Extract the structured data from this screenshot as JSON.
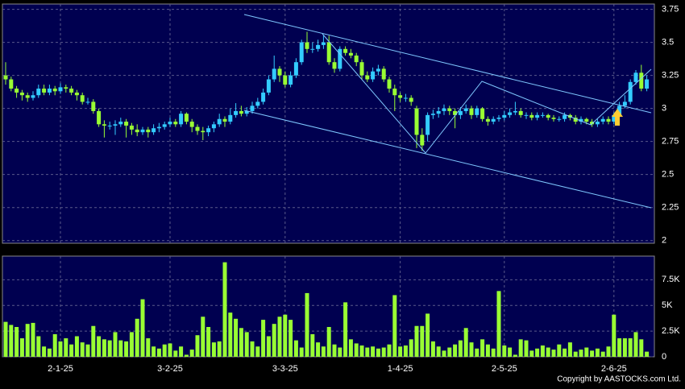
{
  "chart_data": [
    {
      "type": "candlestick",
      "categories": [
        null,
        null,
        null,
        null,
        null,
        null,
        null,
        null,
        null,
        null,
        "2-1-25",
        null,
        null,
        null,
        null,
        null,
        null,
        null,
        null,
        null,
        null,
        null,
        null,
        null,
        null,
        null,
        null,
        null,
        null,
        null,
        "3-2-25",
        null,
        null,
        null,
        null,
        null,
        null,
        null,
        null,
        null,
        null,
        null,
        null,
        null,
        null,
        null,
        null,
        null,
        null,
        null,
        null,
        "3-3-25",
        null,
        null,
        null,
        null,
        null,
        null,
        null,
        null,
        null,
        null,
        null,
        null,
        null,
        null,
        null,
        null,
        null,
        null,
        null,
        null,
        "1-4-25",
        null,
        null,
        null,
        null,
        null,
        null,
        null,
        null,
        null,
        null,
        null,
        null,
        null,
        null,
        null,
        null,
        null,
        null,
        "2-5-25",
        null,
        null,
        null,
        null,
        null,
        null,
        null,
        null,
        null,
        null,
        null,
        null,
        null,
        null,
        null,
        null,
        null,
        null,
        null,
        "2-6-25",
        null,
        null,
        null,
        null,
        null,
        null
      ],
      "open": [
        3.25,
        3.22,
        3.15,
        3.12,
        3.1,
        3.08,
        3.1,
        3.15,
        3.12,
        3.15,
        3.13,
        3.16,
        3.15,
        3.12,
        3.1,
        3.05,
        3.05,
        2.98,
        2.88,
        2.87,
        2.87,
        2.88,
        2.9,
        2.87,
        2.84,
        2.82,
        2.84,
        2.82,
        2.85,
        2.86,
        2.88,
        2.9,
        2.88,
        2.96,
        2.9,
        2.86,
        2.83,
        2.82,
        2.85,
        2.88,
        2.92,
        2.9,
        2.95,
        2.98,
        2.96,
        2.98,
        3.02,
        3.05,
        3.12,
        3.22,
        3.3,
        3.25,
        3.18,
        3.25,
        3.35,
        3.5,
        3.45,
        3.45,
        3.48,
        3.5,
        3.35,
        3.3,
        3.45,
        3.42,
        3.4,
        3.35,
        3.25,
        3.22,
        3.28,
        3.3,
        3.22,
        3.15,
        3.1,
        3.08,
        3.08,
        3.0,
        2.8,
        2.8,
        2.95,
        2.96,
        2.98,
        3.0,
        2.98,
        2.95,
        2.98,
        3.0,
        2.95,
        3.0,
        2.92,
        2.9,
        2.92,
        2.93,
        2.95,
        2.97,
        2.98,
        2.95,
        2.95,
        2.93,
        2.95,
        2.95,
        2.93,
        2.92,
        2.92,
        2.95,
        2.93,
        2.9,
        2.92,
        2.9,
        2.88,
        2.9,
        2.92,
        2.9,
        2.95,
        3.02,
        3.05,
        3.2,
        3.27,
        3.15
      ],
      "high": [
        3.35,
        3.24,
        3.17,
        3.14,
        3.12,
        3.13,
        3.18,
        3.18,
        3.18,
        3.17,
        3.19,
        3.18,
        3.17,
        3.14,
        3.12,
        3.08,
        3.07,
        3.0,
        2.91,
        2.9,
        2.91,
        2.93,
        2.92,
        2.89,
        2.88,
        2.86,
        2.86,
        2.88,
        2.89,
        2.9,
        2.93,
        2.92,
        2.98,
        2.97,
        2.92,
        2.88,
        2.86,
        2.87,
        2.9,
        2.96,
        2.94,
        3.0,
        3.04,
        3.02,
        3.01,
        3.05,
        3.08,
        3.15,
        3.25,
        3.4,
        3.32,
        3.28,
        3.28,
        3.38,
        3.52,
        3.58,
        3.5,
        3.52,
        3.55,
        3.55,
        3.38,
        3.47,
        3.47,
        3.45,
        3.42,
        3.37,
        3.28,
        3.31,
        3.33,
        3.32,
        3.24,
        3.18,
        3.12,
        3.11,
        3.1,
        3.02,
        2.85,
        2.97,
        2.99,
        3.01,
        3.03,
        3.02,
        3.0,
        3.01,
        3.03,
        3.02,
        3.02,
        3.01,
        2.94,
        2.94,
        2.95,
        2.98,
        3.0,
        3.05,
        3.0,
        2.97,
        2.97,
        2.97,
        2.97,
        2.96,
        2.95,
        2.94,
        2.97,
        2.96,
        2.95,
        2.94,
        2.93,
        2.92,
        2.92,
        2.94,
        2.94,
        2.97,
        3.05,
        3.1,
        3.22,
        3.29,
        3.33,
        3.25
      ],
      "low": [
        3.18,
        3.13,
        3.08,
        3.06,
        3.05,
        3.06,
        3.08,
        3.1,
        3.1,
        3.1,
        3.11,
        3.12,
        3.1,
        3.06,
        3.03,
        3.03,
        2.96,
        2.86,
        2.78,
        2.84,
        2.8,
        2.86,
        2.78,
        2.8,
        2.79,
        2.8,
        2.78,
        2.8,
        2.82,
        2.84,
        2.86,
        2.86,
        2.86,
        2.88,
        2.82,
        2.8,
        2.76,
        2.79,
        2.82,
        2.86,
        2.86,
        2.88,
        2.93,
        2.94,
        2.94,
        2.96,
        3.0,
        3.03,
        3.1,
        3.2,
        3.2,
        3.16,
        3.16,
        3.23,
        3.33,
        3.42,
        3.42,
        3.43,
        3.45,
        3.33,
        3.27,
        3.28,
        3.4,
        3.38,
        3.32,
        3.22,
        3.2,
        3.2,
        3.25,
        3.2,
        3.12,
        2.98,
        3.05,
        3.05,
        3.02,
        2.7,
        2.68,
        2.75,
        2.92,
        2.93,
        2.95,
        2.95,
        2.85,
        2.92,
        2.96,
        2.92,
        2.93,
        2.9,
        2.87,
        2.88,
        2.9,
        2.91,
        2.93,
        2.95,
        2.93,
        2.92,
        2.91,
        2.91,
        2.93,
        2.91,
        2.9,
        2.9,
        2.9,
        2.91,
        2.88,
        2.88,
        2.88,
        2.86,
        2.86,
        2.88,
        2.88,
        2.88,
        2.93,
        3.0,
        3.03,
        3.18,
        3.13,
        3.13
      ],
      "close": [
        3.22,
        3.15,
        3.12,
        3.1,
        3.08,
        3.1,
        3.15,
        3.12,
        3.15,
        3.13,
        3.16,
        3.15,
        3.12,
        3.1,
        3.05,
        3.05,
        2.98,
        2.88,
        2.87,
        2.87,
        2.88,
        2.9,
        2.87,
        2.84,
        2.82,
        2.84,
        2.82,
        2.85,
        2.86,
        2.88,
        2.9,
        2.88,
        2.96,
        2.9,
        2.86,
        2.83,
        2.82,
        2.85,
        2.88,
        2.92,
        2.9,
        2.95,
        2.98,
        2.96,
        2.98,
        3.02,
        3.05,
        3.12,
        3.22,
        3.3,
        3.25,
        3.18,
        3.25,
        3.35,
        3.5,
        3.45,
        3.45,
        3.48,
        3.5,
        3.35,
        3.3,
        3.45,
        3.42,
        3.4,
        3.35,
        3.25,
        3.22,
        3.28,
        3.3,
        3.22,
        3.15,
        3.1,
        3.08,
        3.08,
        3.05,
        2.8,
        2.72,
        2.95,
        2.96,
        2.98,
        3.0,
        2.98,
        2.95,
        2.98,
        3.0,
        2.95,
        3.0,
        2.92,
        2.9,
        2.92,
        2.93,
        2.95,
        2.97,
        2.98,
        2.95,
        2.95,
        2.93,
        2.95,
        2.95,
        2.93,
        2.92,
        2.92,
        2.95,
        2.93,
        2.9,
        2.92,
        2.9,
        2.88,
        2.9,
        2.92,
        2.9,
        2.95,
        3.02,
        3.05,
        3.2,
        3.27,
        3.15,
        3.22
      ],
      "up_color": "#33ccff",
      "down_color": "#99ff33",
      "ylim": [
        1.98,
        3.79
      ],
      "yticks": [
        2,
        2.25,
        2.5,
        2.75,
        3,
        3.25,
        3.5,
        3.75
      ],
      "grid": true
    },
    {
      "type": "bar",
      "values": [
        3400,
        3100,
        2900,
        1800,
        3200,
        3300,
        2000,
        1000,
        800,
        2200,
        1500,
        1800,
        1200,
        2000,
        1400,
        1200,
        3000,
        2000,
        1700,
        1600,
        2400,
        1600,
        1500,
        2400,
        3700,
        5600,
        1800,
        1000,
        800,
        1200,
        1300,
        600,
        1000,
        200,
        700,
        2100,
        3900,
        2900,
        1400,
        1500,
        9200,
        4300,
        3700,
        2800,
        2400,
        1500,
        1000,
        3600,
        2000,
        3200,
        3900,
        4100,
        3600,
        1600,
        900,
        6200,
        2200,
        1400,
        1000,
        2900,
        1200,
        900,
        5300,
        1700,
        1300,
        1100,
        900,
        1000,
        800,
        900,
        1200,
        6000,
        1000,
        1100,
        1700,
        3000,
        3000,
        4200,
        1500,
        1000,
        600,
        900,
        1200,
        1600,
        2800,
        1400,
        800,
        1700,
        1200,
        800,
        6400,
        1100,
        900,
        200,
        1700,
        1600,
        600,
        800,
        1100,
        900,
        700,
        1200,
        800,
        1400,
        500,
        700,
        900,
        600,
        800,
        500,
        1000,
        4100,
        1800,
        1800,
        1800,
        2400,
        1700,
        500
      ],
      "color": "#99ff33",
      "ylim": [
        0,
        9800
      ],
      "yticks": [
        0,
        {
          "value": 2500,
          "label": "2.5K"
        },
        {
          "value": 5000,
          "label": "5K"
        },
        {
          "value": 7500,
          "label": "7.5K"
        }
      ],
      "grid": true
    }
  ],
  "footer": "Copyright by AASTOCKS.com Ltd."
}
